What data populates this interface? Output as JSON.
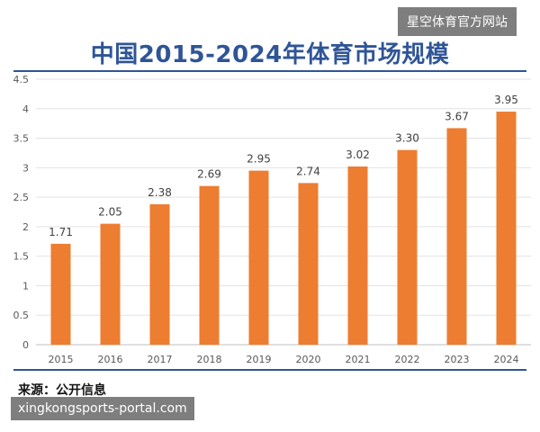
{
  "watermark_top": "星空体育官方网站",
  "watermark_bottom": "xingkongsports-portal.com",
  "source": "来源：公开信息",
  "colors": {
    "bar": "#ed7d31",
    "title": "#2f5597",
    "axis_text": "#595959",
    "grid": "#e3e3e3"
  },
  "chart_data": {
    "type": "bar",
    "title": "中国2015-2024年体育市场规模",
    "xlabel": "",
    "ylabel": "",
    "categories": [
      "2015",
      "2016",
      "2017",
      "2018",
      "2019",
      "2020",
      "2021",
      "2022",
      "2023",
      "2024"
    ],
    "values": [
      1.71,
      2.05,
      2.38,
      2.69,
      2.95,
      2.74,
      3.02,
      3.3,
      3.67,
      3.95
    ],
    "value_labels": [
      "1.71",
      "2.05",
      "2.38",
      "2.69",
      "2.95",
      "2.74",
      "3.02",
      "3.30",
      "3.67",
      "3.95"
    ],
    "ylim": [
      0,
      4.5
    ],
    "yticks": [
      "0",
      "0.5",
      "1",
      "1.5",
      "2",
      "2.5",
      "3",
      "3.5",
      "4",
      "4.5"
    ],
    "grid": true
  }
}
